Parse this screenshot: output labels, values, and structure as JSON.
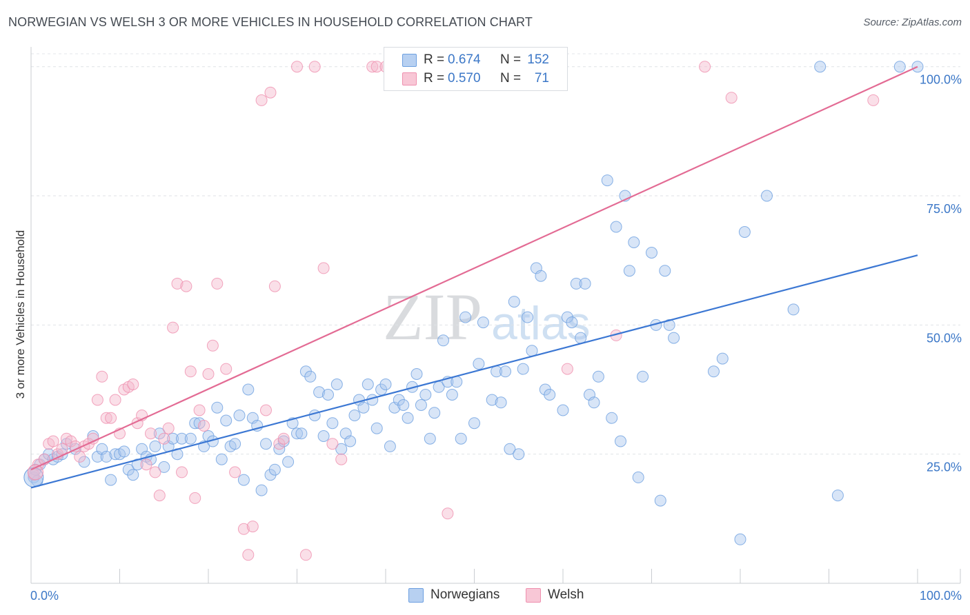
{
  "title": "NORWEGIAN VS WELSH 3 OR MORE VEHICLES IN HOUSEHOLD CORRELATION CHART",
  "source": "Source: ZipAtlas.com",
  "watermark": {
    "zip": "ZIP",
    "atlas": "atlas"
  },
  "legend": {
    "rows": [
      {
        "r_label": "R =",
        "r_value": "0.674",
        "n_label": "N =",
        "n_value": "152",
        "color": "#a9c6ee"
      },
      {
        "r_label": "R =",
        "r_value": "0.570",
        "n_label": "N =",
        "n_value": "71",
        "color": "#f5b8cb"
      }
    ]
  },
  "bottom_legend": [
    {
      "label": "Norwegians",
      "color": "#a9c6ee"
    },
    {
      "label": "Welsh",
      "color": "#f5b8cb"
    }
  ],
  "chart_data": {
    "type": "scatter",
    "title": "NORWEGIAN VS WELSH 3 OR MORE VEHICLES IN HOUSEHOLD CORRELATION CHART",
    "xlabel": "",
    "ylabel": "3 or more Vehicles in Household",
    "xlim": [
      0,
      100
    ],
    "ylim": [
      0,
      102.5
    ],
    "x_tick_labels": [
      "0.0%",
      "100.0%"
    ],
    "y_tick_labels": [
      {
        "value": 25,
        "label": "25.0%"
      },
      {
        "value": 50,
        "label": "50.0%"
      },
      {
        "value": 75,
        "label": "75.0%"
      },
      {
        "value": 100,
        "label": "100.0%"
      }
    ],
    "grid": true,
    "legend_position": "top-center",
    "series": [
      {
        "name": "Norwegians",
        "color": "#6c9fe0",
        "fill": "#a9c6ee",
        "line_color": "#3b77d3",
        "trend": {
          "x0": 0,
          "y0": 18.5,
          "x1": 100,
          "y1": 63.5
        },
        "points": [
          [
            0.3,
            20.5
          ],
          [
            0.5,
            22
          ],
          [
            0.7,
            19.8
          ],
          [
            1,
            23
          ],
          [
            1.5,
            24
          ],
          [
            2,
            25
          ],
          [
            2.5,
            24
          ],
          [
            3,
            24.5
          ],
          [
            3.5,
            25
          ],
          [
            4,
            27
          ],
          [
            5,
            26
          ],
          [
            6,
            23.5
          ],
          [
            7,
            28.5
          ],
          [
            7.5,
            24.5
          ],
          [
            8,
            26
          ],
          [
            8.5,
            24.5
          ],
          [
            9,
            20
          ],
          [
            9.5,
            25
          ],
          [
            10,
            25
          ],
          [
            10.5,
            25.5
          ],
          [
            11,
            22
          ],
          [
            11.5,
            21
          ],
          [
            12,
            23
          ],
          [
            12.5,
            26
          ],
          [
            13,
            24.5
          ],
          [
            13.5,
            24
          ],
          [
            14,
            26.5
          ],
          [
            14.5,
            29
          ],
          [
            15,
            22.5
          ],
          [
            15.5,
            26.5
          ],
          [
            16,
            28
          ],
          [
            16.5,
            25
          ],
          [
            17,
            28
          ],
          [
            18,
            28
          ],
          [
            18.5,
            31
          ],
          [
            19,
            31
          ],
          [
            19.5,
            26.5
          ],
          [
            20,
            28.5
          ],
          [
            20.5,
            27.5
          ],
          [
            21,
            34
          ],
          [
            21.5,
            24
          ],
          [
            22,
            31.5
          ],
          [
            22.5,
            26.5
          ],
          [
            23,
            27
          ],
          [
            23.5,
            32.5
          ],
          [
            24,
            20
          ],
          [
            24.5,
            37.5
          ],
          [
            25,
            32
          ],
          [
            25.5,
            30.5
          ],
          [
            26,
            18
          ],
          [
            26.5,
            27
          ],
          [
            27,
            21
          ],
          [
            27.5,
            22
          ],
          [
            28,
            26
          ],
          [
            28.5,
            27.5
          ],
          [
            29,
            23.5
          ],
          [
            29.5,
            31
          ],
          [
            30,
            29
          ],
          [
            30.5,
            29
          ],
          [
            31,
            41
          ],
          [
            31.5,
            40
          ],
          [
            32,
            32.5
          ],
          [
            32.5,
            37
          ],
          [
            33,
            28.5
          ],
          [
            33.5,
            36.5
          ],
          [
            34,
            31
          ],
          [
            34.5,
            38.5
          ],
          [
            35,
            26
          ],
          [
            35.5,
            29
          ],
          [
            36,
            27.5
          ],
          [
            36.5,
            32.5
          ],
          [
            37,
            35.5
          ],
          [
            37.5,
            34
          ],
          [
            38,
            38.5
          ],
          [
            38.5,
            35.5
          ],
          [
            39,
            30
          ],
          [
            39.5,
            37.5
          ],
          [
            40,
            38.5
          ],
          [
            40.5,
            26.5
          ],
          [
            41,
            34
          ],
          [
            41.5,
            35.5
          ],
          [
            42,
            34.5
          ],
          [
            42.5,
            32
          ],
          [
            43,
            38
          ],
          [
            43.5,
            40.5
          ],
          [
            44,
            34.5
          ],
          [
            44.5,
            36.5
          ],
          [
            45,
            28
          ],
          [
            45.5,
            33
          ],
          [
            46,
            38
          ],
          [
            46.5,
            47
          ],
          [
            47,
            39
          ],
          [
            47.5,
            36.5
          ],
          [
            48,
            39
          ],
          [
            48.5,
            28
          ],
          [
            49,
            51.5
          ],
          [
            50,
            31
          ],
          [
            50.5,
            42.5
          ],
          [
            51,
            50.5
          ],
          [
            52,
            35.5
          ],
          [
            52.5,
            41
          ],
          [
            53,
            35
          ],
          [
            53.5,
            41
          ],
          [
            54,
            26
          ],
          [
            54.5,
            54.5
          ],
          [
            55,
            25
          ],
          [
            55.5,
            41.5
          ],
          [
            56,
            51.5
          ],
          [
            56.5,
            45
          ],
          [
            57,
            61
          ],
          [
            57.5,
            59.5
          ],
          [
            58,
            37.5
          ],
          [
            58.5,
            36.5
          ],
          [
            60,
            33.5
          ],
          [
            60.5,
            51.5
          ],
          [
            61,
            50.5
          ],
          [
            61.5,
            58
          ],
          [
            62,
            47.5
          ],
          [
            62.5,
            58
          ],
          [
            63,
            36.5
          ],
          [
            63.5,
            35
          ],
          [
            64,
            40
          ],
          [
            65,
            78
          ],
          [
            65.5,
            32
          ],
          [
            66,
            69
          ],
          [
            66.5,
            27.5
          ],
          [
            67,
            75
          ],
          [
            67.5,
            60.5
          ],
          [
            68,
            66
          ],
          [
            68.5,
            20.5
          ],
          [
            69,
            40
          ],
          [
            70,
            64
          ],
          [
            70.5,
            50
          ],
          [
            71,
            16
          ],
          [
            71.5,
            60.5
          ],
          [
            72,
            50
          ],
          [
            72.5,
            47.5
          ],
          [
            77,
            41
          ],
          [
            78,
            43.5
          ],
          [
            80,
            8.5
          ],
          [
            80.5,
            68
          ],
          [
            83,
            75
          ],
          [
            86,
            53
          ],
          [
            89,
            100
          ],
          [
            91,
            17
          ],
          [
            98,
            100
          ],
          [
            100,
            100
          ]
        ]
      },
      {
        "name": "Welsh",
        "color": "#ef8fae",
        "fill": "#f5b8cb",
        "line_color": "#e36b94",
        "trend": {
          "x0": 0,
          "y0": 22,
          "x1": 100,
          "y1": 100
        },
        "points": [
          [
            0.3,
            21
          ],
          [
            0.8,
            23
          ],
          [
            1.5,
            24
          ],
          [
            2,
            27
          ],
          [
            2.5,
            27.5
          ],
          [
            3,
            25
          ],
          [
            3.5,
            26
          ],
          [
            4,
            28
          ],
          [
            4.5,
            27.5
          ],
          [
            5,
            26.5
          ],
          [
            5.5,
            24.5
          ],
          [
            6,
            26.5
          ],
          [
            6.5,
            27
          ],
          [
            7,
            28
          ],
          [
            7.5,
            35.5
          ],
          [
            8,
            40
          ],
          [
            8.5,
            32
          ],
          [
            9,
            32
          ],
          [
            9.5,
            35.5
          ],
          [
            10,
            29
          ],
          [
            10.5,
            37.5
          ],
          [
            11,
            38
          ],
          [
            11.5,
            38.5
          ],
          [
            12,
            31
          ],
          [
            12.5,
            32.5
          ],
          [
            13,
            23
          ],
          [
            13.5,
            29
          ],
          [
            14,
            21.5
          ],
          [
            14.5,
            17
          ],
          [
            15,
            28
          ],
          [
            15.5,
            30
          ],
          [
            16,
            49.5
          ],
          [
            16.5,
            58
          ],
          [
            17,
            21.5
          ],
          [
            17.5,
            57.5
          ],
          [
            18,
            41
          ],
          [
            18.5,
            16.5
          ],
          [
            19,
            33.5
          ],
          [
            19.5,
            30.5
          ],
          [
            20,
            40.5
          ],
          [
            20.5,
            46
          ],
          [
            21,
            58
          ],
          [
            22,
            41.5
          ],
          [
            23,
            21.5
          ],
          [
            24,
            10.5
          ],
          [
            24.5,
            5.5
          ],
          [
            25,
            11
          ],
          [
            26,
            93.5
          ],
          [
            26.5,
            33.5
          ],
          [
            27,
            95
          ],
          [
            27.5,
            57.5
          ],
          [
            28,
            27
          ],
          [
            28.5,
            28
          ],
          [
            30,
            100
          ],
          [
            31,
            5.5
          ],
          [
            32,
            100
          ],
          [
            33,
            61
          ],
          [
            34,
            27
          ],
          [
            35,
            24
          ],
          [
            38.5,
            100
          ],
          [
            39,
            100
          ],
          [
            40,
            100
          ],
          [
            47,
            13.5
          ],
          [
            60.5,
            41.5
          ],
          [
            66,
            48
          ],
          [
            76,
            100
          ],
          [
            79,
            94
          ],
          [
            95,
            93.5
          ]
        ]
      }
    ]
  }
}
